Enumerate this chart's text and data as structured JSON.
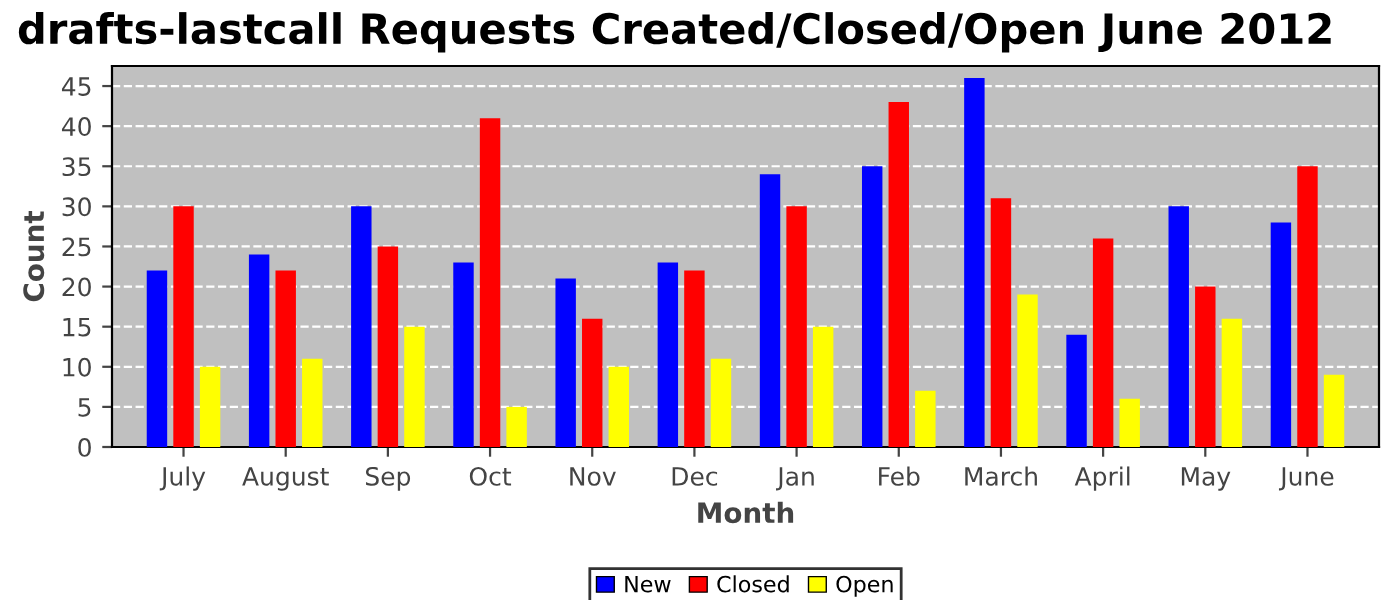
{
  "chart_data": {
    "type": "bar",
    "title": "drafts-lastcall Requests Created/Closed/Open June 2012",
    "xlabel": "Month",
    "ylabel": "Count",
    "categories": [
      "July",
      "August",
      "Sep",
      "Oct",
      "Nov",
      "Dec",
      "Jan",
      "Feb",
      "March",
      "April",
      "May",
      "June"
    ],
    "series": [
      {
        "name": "New",
        "color": "#0000ff",
        "values": [
          22,
          24,
          30,
          23,
          21,
          23,
          34,
          35,
          46,
          14,
          30,
          28
        ]
      },
      {
        "name": "Closed",
        "color": "#ff0000",
        "values": [
          30,
          22,
          25,
          41,
          16,
          22,
          30,
          43,
          31,
          26,
          20,
          35
        ]
      },
      {
        "name": "Open",
        "color": "#ffff00",
        "values": [
          10,
          11,
          15,
          5,
          10,
          11,
          15,
          7,
          19,
          6,
          16,
          9
        ]
      }
    ],
    "ylim": [
      0,
      47.5
    ],
    "yticks": [
      0,
      5,
      10,
      15,
      20,
      25,
      30,
      35,
      40,
      45
    ],
    "grid": "y",
    "legend": "bottom"
  }
}
